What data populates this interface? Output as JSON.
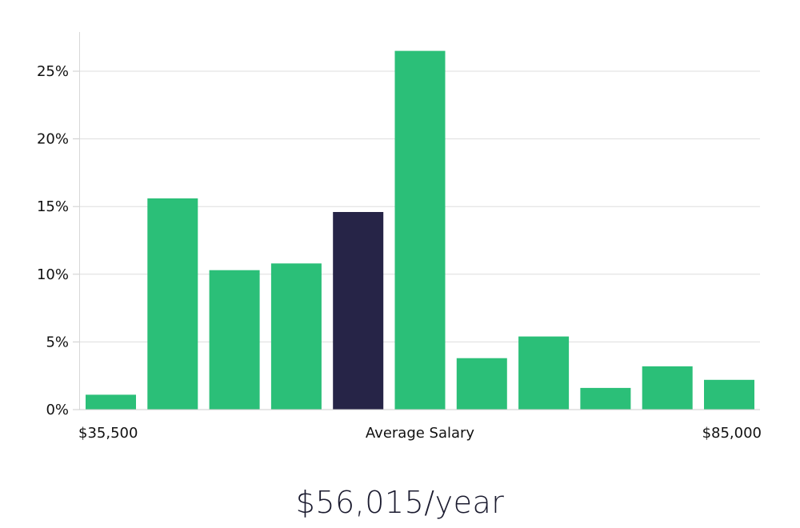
{
  "chart_data": {
    "type": "bar",
    "title": "",
    "xlabel": "",
    "ylabel": "",
    "ylim": [
      0,
      28
    ],
    "y_ticks": [
      0,
      5,
      10,
      15,
      20,
      25
    ],
    "y_tick_suffix": "%",
    "values": [
      1.1,
      15.6,
      10.3,
      10.8,
      14.6,
      26.5,
      3.8,
      5.4,
      1.6,
      3.2,
      2.2
    ],
    "highlight_index": 4,
    "x_labels": {
      "min": "$35,500",
      "center": "Average Salary",
      "max": "$85,000"
    },
    "colors": {
      "bar": "#2bbf78",
      "highlight": "#262447",
      "grid": "#dddddd",
      "axis": "#d8d8d8"
    }
  },
  "salary_text": "$56,015/year"
}
